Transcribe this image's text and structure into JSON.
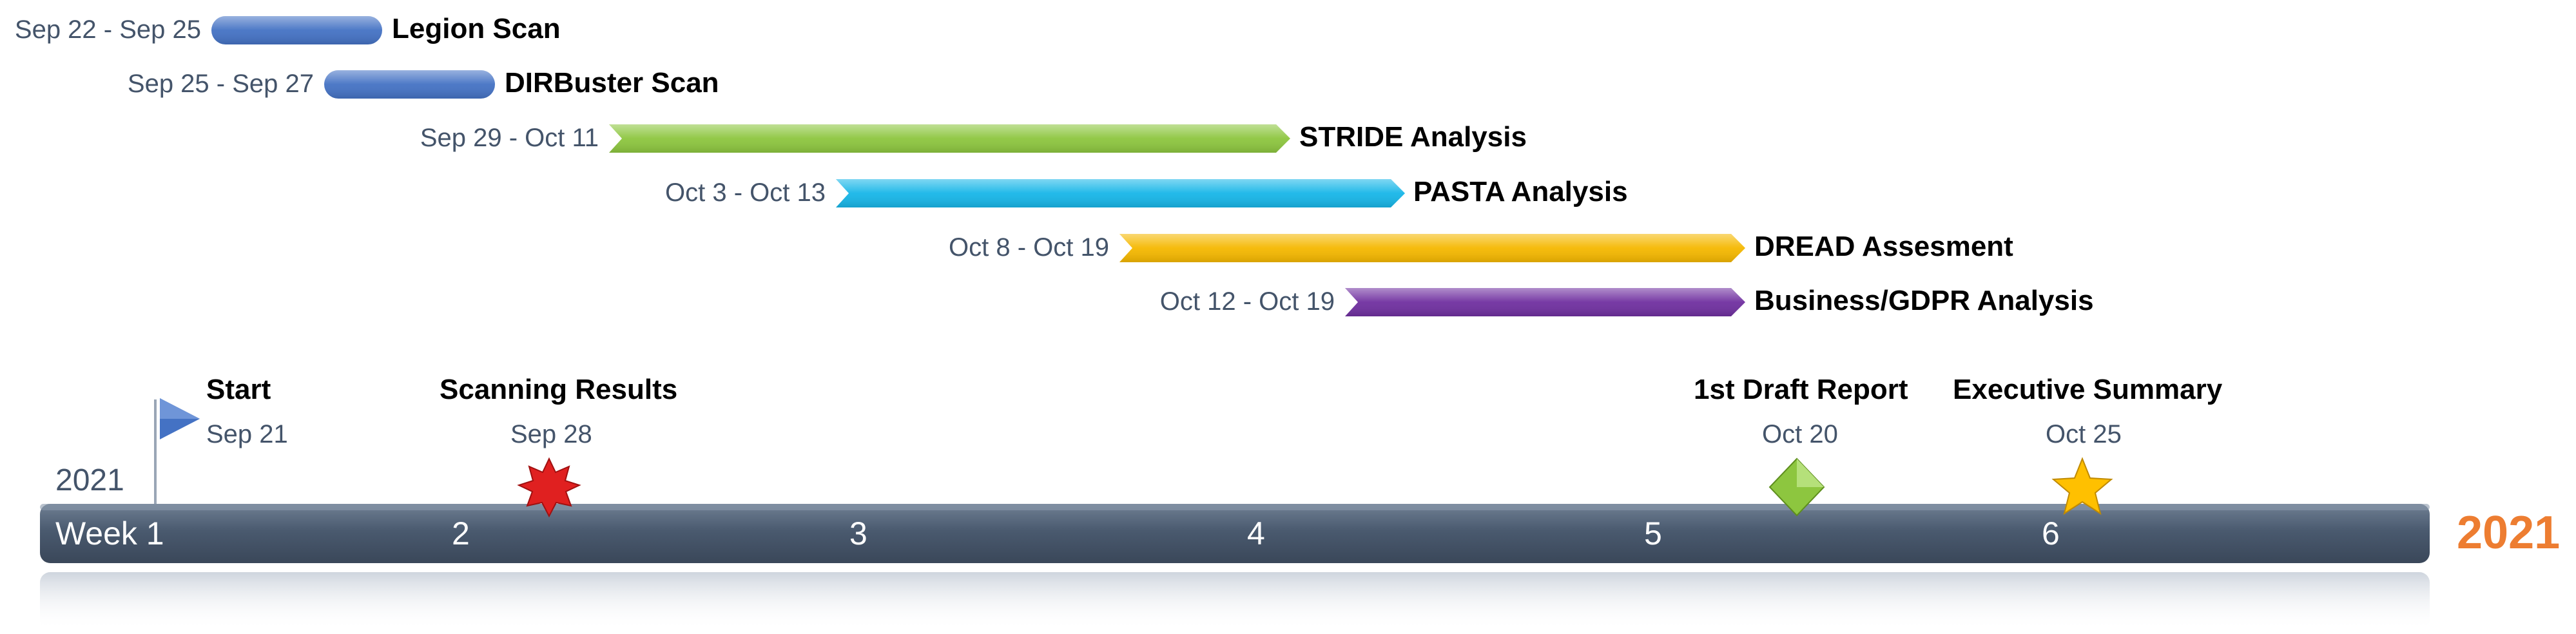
{
  "timeline": {
    "year_left": "2021",
    "year_right": "2021",
    "year_right_color": "#ed7d31",
    "axis_color": "#4a5a6f",
    "weeks": [
      "Week 1",
      "2",
      "3",
      "4",
      "5",
      "6"
    ]
  },
  "tasks": [
    {
      "name": "Legion Scan",
      "dates": "Sep 22 - Sep 25",
      "color": "#4472c4",
      "shape": "rounded"
    },
    {
      "name": "DIRBuster Scan",
      "dates": "Sep 25 - Sep 27",
      "color": "#4472c4",
      "shape": "rounded"
    },
    {
      "name": "STRIDE Analysis",
      "dates": "Sep 29 - Oct 11",
      "color": "#8dc63f",
      "shape": "chevron"
    },
    {
      "name": "PASTA Analysis",
      "dates": "Oct 3 - Oct 13",
      "color": "#17b6e8",
      "shape": "chevron"
    },
    {
      "name": "DREAD Assesment",
      "dates": "Oct 8 - Oct 19",
      "color": "#f5b800",
      "shape": "chevron"
    },
    {
      "name": "Business/GDPR Analysis",
      "dates": "Oct 12 - Oct 19",
      "color": "#7030a0",
      "shape": "chevron"
    }
  ],
  "milestones": [
    {
      "name": "Start",
      "date": "Sep 21",
      "icon": "flag-icon",
      "color": "#4472c4"
    },
    {
      "name": "Scanning Results",
      "date": "Sep 28",
      "icon": "starburst-icon",
      "color": "#e02020"
    },
    {
      "name": "1st Draft Report",
      "date": "Oct 20",
      "icon": "diamond-icon",
      "color": "#8dc63f"
    },
    {
      "name": "Executive Summary",
      "date": "Oct 25",
      "icon": "star-icon",
      "color": "#ffc000"
    }
  ]
}
